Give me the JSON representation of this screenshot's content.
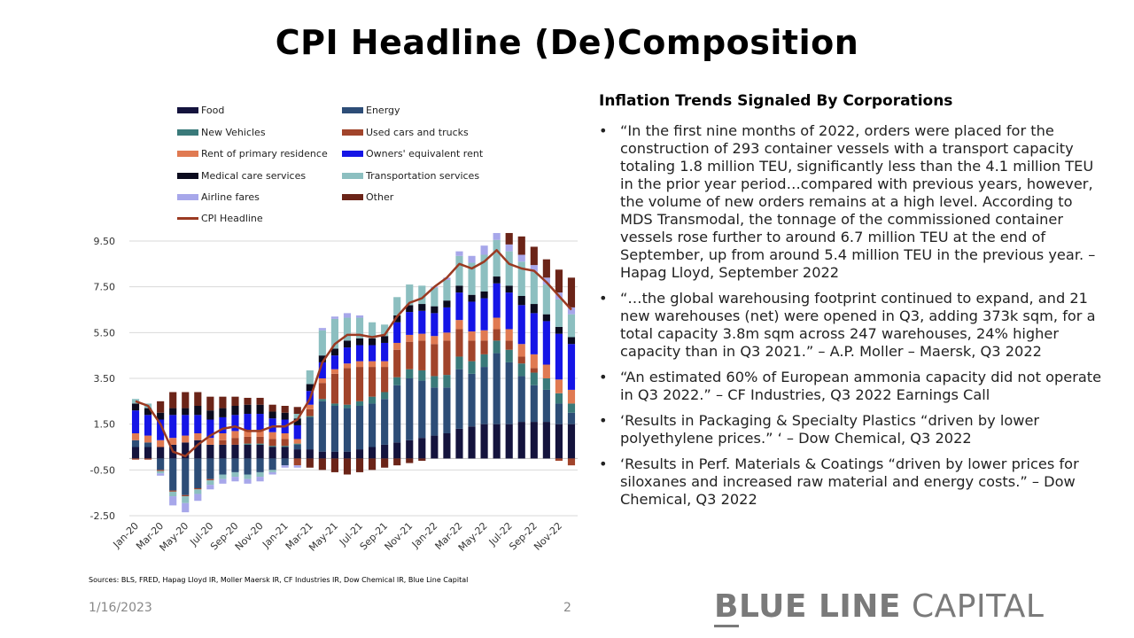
{
  "title": "CPI Headline (De)Composition",
  "right_panel": {
    "heading": "Inflation Trends Signaled By Corporations",
    "bullets": [
      "“In the first nine months of 2022, orders were placed for the construction of 293 container vessels with a transport capacity totaling 1.8 million TEU, significantly less than the 4.1 million TEU in the prior year period…compared with previous years, however, the volume of new orders remains at a high level. According to MDS Transmodal, the tonnage of the commissioned container vessels rose further to around 6.7 million TEU at the end of September, up from around 5.4 million TEU in the previous year. – Hapag Lloyd, September 2022",
      "“…the global warehousing footprint continued to expand, and 21 new warehouses (net) were opened in Q3, adding 373k sqm, for a total capacity 3.8m sqm across 247 warehouses, 24% higher capacity than in Q3 2021.” – A.P. Moller – Maersk, Q3 2022",
      "“An estimated 60% of European ammonia capacity did not operate in Q3 2022.” – CF Industries, Q3 2022 Earnings Call",
      "‘Results in Packaging & Specialty Plastics “driven by lower polyethylene prices.” ‘ – Dow Chemical, Q3 2022",
      "‘Results in Perf. Materials & Coatings “driven by lower prices for siloxanes and increased raw material and energy costs.” – Dow Chemical, Q3 2022"
    ],
    "bullet_glyph": "•"
  },
  "sources": "Sources: BLS, FRED, Hapag  Lloyd IR, Moller Maersk IR, CF Industries IR, Dow Chemical  IR, Blue Line Capital",
  "footer": {
    "date": "1/16/2023",
    "page": "2"
  },
  "brand": {
    "bold": "BLUE LINE",
    "light": "CAPITAL"
  },
  "chart_data": {
    "type": "bar",
    "stacked": true,
    "x": [
      "Jan-20",
      "Feb-20",
      "Mar-20",
      "Apr-20",
      "May-20",
      "Jun-20",
      "Jul-20",
      "Aug-20",
      "Sep-20",
      "Oct-20",
      "Nov-20",
      "Dec-20",
      "Jan-21",
      "Feb-21",
      "Mar-21",
      "Apr-21",
      "May-21",
      "Jun-21",
      "Jul-21",
      "Aug-21",
      "Sep-21",
      "Oct-21",
      "Nov-21",
      "Dec-21",
      "Jan-22",
      "Feb-22",
      "Mar-22",
      "Apr-22",
      "May-22",
      "Jun-22",
      "Jul-22",
      "Aug-22",
      "Sep-22",
      "Oct-22",
      "Nov-22",
      "Dec-22"
    ],
    "x_tick_labels": [
      "Jan-20",
      "Mar-20",
      "May-20",
      "Jul-20",
      "Sep-20",
      "Nov-20",
      "Jan-21",
      "Mar-21",
      "May-21",
      "Jul-21",
      "Sep-21",
      "Nov-21",
      "Jan-22",
      "Mar-22",
      "May-22",
      "Jul-22",
      "Sep-22",
      "Nov-22"
    ],
    "y_ticks": [
      "9.50",
      "7.50",
      "5.50",
      "3.50",
      "1.50",
      "-0.50",
      "-2.50"
    ],
    "ylim": [
      -2.5,
      9.5
    ],
    "grid": true,
    "legend_position": "top",
    "series": [
      {
        "name": "Food",
        "color": "#14133d",
        "values": [
          0.5,
          0.5,
          0.5,
          0.6,
          0.7,
          0.8,
          0.6,
          0.6,
          0.6,
          0.6,
          0.6,
          0.5,
          0.5,
          0.4,
          0.4,
          0.3,
          0.3,
          0.3,
          0.4,
          0.5,
          0.6,
          0.7,
          0.8,
          0.9,
          1.0,
          1.1,
          1.3,
          1.4,
          1.5,
          1.5,
          1.5,
          1.6,
          1.6,
          1.6,
          1.5,
          1.5
        ]
      },
      {
        "name": "Energy",
        "color": "#2d4d77",
        "values": [
          0.3,
          0.2,
          -0.5,
          -1.4,
          -1.6,
          -1.3,
          -0.9,
          -0.7,
          -0.6,
          -0.7,
          -0.6,
          -0.5,
          -0.3,
          0.2,
          1.4,
          2.2,
          2.0,
          1.9,
          1.9,
          1.9,
          2.0,
          2.5,
          2.7,
          2.5,
          2.1,
          2.0,
          2.6,
          2.3,
          2.5,
          3.1,
          2.7,
          2.0,
          1.6,
          1.4,
          0.9,
          0.5
        ]
      },
      {
        "name": "New Vehicles",
        "color": "#3a7a7a",
        "values": [
          0.0,
          0.0,
          0.0,
          0.0,
          0.0,
          0.0,
          0.0,
          0.0,
          0.0,
          0.05,
          0.05,
          0.05,
          0.05,
          0.05,
          0.05,
          0.1,
          0.1,
          0.15,
          0.2,
          0.3,
          0.3,
          0.35,
          0.4,
          0.45,
          0.5,
          0.55,
          0.55,
          0.55,
          0.55,
          0.55,
          0.55,
          0.55,
          0.55,
          0.5,
          0.45,
          0.4
        ]
      },
      {
        "name": "Used cars and trucks",
        "color": "#a1442b",
        "values": [
          -0.05,
          -0.05,
          -0.05,
          -0.05,
          -0.05,
          -0.05,
          -0.05,
          0.2,
          0.3,
          0.3,
          0.3,
          0.3,
          0.3,
          -0.3,
          0.3,
          0.7,
          1.3,
          1.6,
          1.5,
          1.3,
          1.1,
          1.2,
          1.2,
          1.3,
          1.4,
          1.5,
          1.2,
          0.9,
          0.6,
          0.5,
          0.4,
          0.3,
          0.2,
          0.0,
          -0.1,
          -0.3
        ]
      },
      {
        "name": "Rent of primary residence",
        "color": "#e07a52",
        "values": [
          0.3,
          0.3,
          0.3,
          0.3,
          0.3,
          0.3,
          0.3,
          0.3,
          0.3,
          0.3,
          0.3,
          0.3,
          0.25,
          0.2,
          0.2,
          0.2,
          0.2,
          0.2,
          0.25,
          0.25,
          0.25,
          0.3,
          0.3,
          0.3,
          0.35,
          0.35,
          0.4,
          0.4,
          0.45,
          0.5,
          0.5,
          0.55,
          0.6,
          0.6,
          0.6,
          0.6
        ]
      },
      {
        "name": "Owners' equivalent rent",
        "color": "#1515e6",
        "values": [
          1.0,
          0.9,
          0.9,
          1.0,
          0.9,
          0.8,
          0.8,
          0.7,
          0.7,
          0.7,
          0.7,
          0.6,
          0.6,
          0.6,
          0.6,
          0.7,
          0.6,
          0.7,
          0.7,
          0.7,
          0.8,
          0.9,
          1.0,
          1.0,
          1.0,
          1.1,
          1.2,
          1.3,
          1.4,
          1.5,
          1.6,
          1.7,
          1.8,
          1.9,
          2.0,
          2.0
        ]
      },
      {
        "name": "Medical care services",
        "color": "#0b0b1e",
        "values": [
          0.3,
          0.3,
          0.3,
          0.3,
          0.3,
          0.4,
          0.4,
          0.4,
          0.4,
          0.4,
          0.4,
          0.3,
          0.3,
          0.3,
          0.3,
          0.3,
          0.3,
          0.3,
          0.3,
          0.3,
          0.3,
          0.3,
          0.3,
          0.3,
          0.3,
          0.3,
          0.3,
          0.3,
          0.3,
          0.3,
          0.3,
          0.4,
          0.4,
          0.3,
          0.3,
          0.3
        ]
      },
      {
        "name": "Transportation services",
        "color": "#8cbfc0",
        "values": [
          0.2,
          0.2,
          -0.1,
          -0.2,
          -0.3,
          -0.2,
          -0.2,
          -0.2,
          -0.2,
          -0.2,
          -0.2,
          -0.1,
          0.0,
          0.2,
          0.6,
          1.1,
          1.3,
          1.0,
          0.9,
          0.7,
          0.5,
          0.8,
          0.9,
          0.8,
          0.8,
          0.9,
          1.3,
          1.4,
          1.6,
          1.6,
          1.5,
          1.5,
          1.4,
          1.3,
          1.2,
          1.0
        ]
      },
      {
        "name": "Airline fares",
        "color": "#a7a7ea",
        "values": [
          0.0,
          0.0,
          -0.1,
          -0.4,
          -0.4,
          -0.3,
          -0.2,
          -0.2,
          -0.2,
          -0.2,
          -0.2,
          -0.1,
          -0.1,
          -0.1,
          0.0,
          0.1,
          0.1,
          0.2,
          0.1,
          0.0,
          0.0,
          0.0,
          0.0,
          0.0,
          0.05,
          0.1,
          0.2,
          0.3,
          0.4,
          0.3,
          0.3,
          0.3,
          0.3,
          0.3,
          0.3,
          0.3
        ]
      },
      {
        "name": "Other",
        "color": "#6b2418",
        "values": [
          0.0,
          0.0,
          0.5,
          0.7,
          0.7,
          0.6,
          0.6,
          0.5,
          0.4,
          0.3,
          0.3,
          0.3,
          0.3,
          0.3,
          -0.4,
          -0.5,
          -0.6,
          -0.7,
          -0.6,
          -0.5,
          -0.4,
          -0.3,
          -0.2,
          -0.1,
          0.0,
          0.0,
          0.0,
          0.0,
          0.0,
          0.0,
          0.5,
          0.8,
          0.8,
          0.8,
          1.0,
          1.3
        ]
      }
    ],
    "line": {
      "name": "CPI Headline",
      "color": "#9b3a22",
      "values": [
        2.5,
        2.3,
        1.5,
        0.3,
        0.1,
        0.6,
        1.0,
        1.3,
        1.4,
        1.2,
        1.2,
        1.4,
        1.4,
        1.7,
        2.6,
        4.2,
        5.0,
        5.4,
        5.4,
        5.3,
        5.4,
        6.2,
        6.8,
        7.0,
        7.5,
        7.9,
        8.5,
        8.3,
        8.6,
        9.1,
        8.5,
        8.3,
        8.2,
        7.7,
        7.1,
        6.5
      ]
    }
  }
}
